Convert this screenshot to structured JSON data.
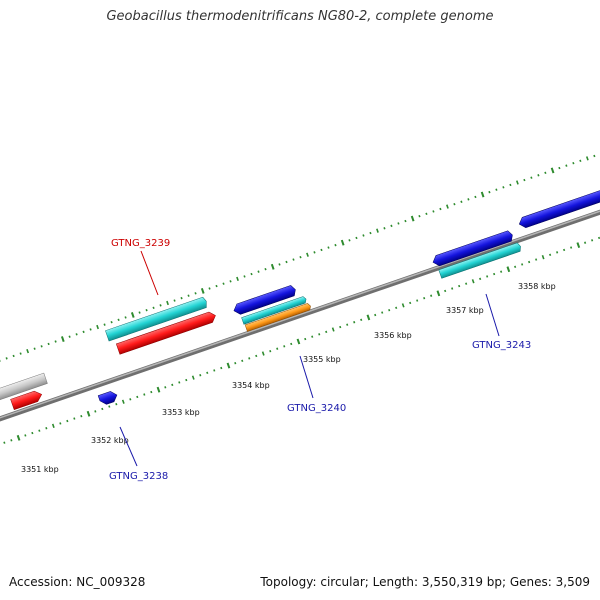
{
  "title": "Geobacillus thermodenitrificans NG80-2, complete genome",
  "footer": {
    "accession": "Accession: NC_009328",
    "summary": "Topology: circular; Length: 3,550,319 bp; Genes: 3,509"
  },
  "colors": {
    "backbone": "#8c8c8c",
    "ticks": "#2e8b2e",
    "red_label": "#cc0000",
    "blue_label": "#1a1aaa",
    "gene_red": "#ff1a1a",
    "gene_cyan": "#22d3d3",
    "gene_blue": "#1414dd",
    "gene_orange": "#ff9a1a",
    "gene_gray": "#c8c8c8"
  },
  "tick_labels": [
    "3351 kbp",
    "3352 kbp",
    "3353 kbp",
    "3354 kbp",
    "3355 kbp",
    "3356 kbp",
    "3357 kbp",
    "3358 kbp"
  ],
  "gene_labels": {
    "g3239": "GTNG_3239",
    "g3240": "GTNG_3240",
    "g3238": "GTNG_3238",
    "g3243": "GTNG_3243"
  }
}
